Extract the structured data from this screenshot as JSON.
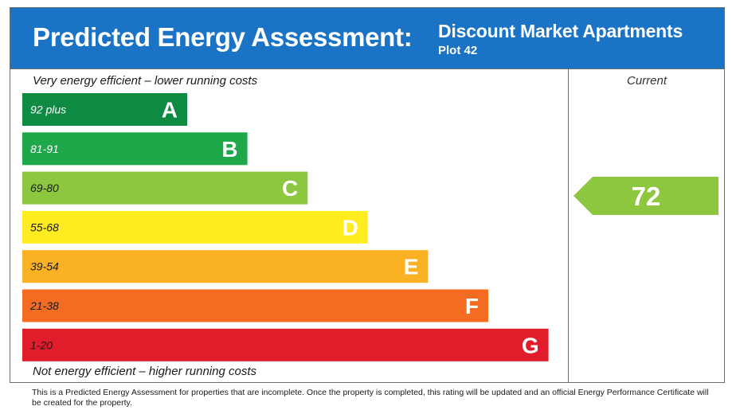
{
  "header": {
    "title": "Predicted Energy Assessment:",
    "property_name": "Discount Market Apartments",
    "plot": "Plot 42",
    "background_color": "#1a73c4"
  },
  "labels": {
    "top": "Very energy efficient – lower running costs",
    "bottom": "Not energy efficient – higher running costs",
    "current_column": "Current"
  },
  "chart_data": {
    "type": "bar",
    "categories": [
      "A",
      "B",
      "C",
      "D",
      "E",
      "F",
      "G"
    ],
    "series": [
      {
        "values": [
          92,
          81,
          69,
          55,
          39,
          21,
          1
        ]
      }
    ],
    "ranges": [
      "92 plus",
      "81-91",
      "69-80",
      "55-68",
      "39-54",
      "21-38",
      "1-20"
    ],
    "colors": [
      "#0e8a43",
      "#1fa84a",
      "#8dc63f",
      "#ffed21",
      "#fbb124",
      "#f36c21",
      "#e21d2b"
    ],
    "range_text_colors": [
      "#ffffff",
      "#ffffff",
      "#1a1a1a",
      "#1a1a1a",
      "#1a1a1a",
      "#1a1a1a",
      "#1a1a1a"
    ],
    "current": {
      "value": 72,
      "band": "C",
      "color": "#8dc63f"
    }
  },
  "footnote": "This is a Predicted Energy Assessment for properties that are incomplete. Once the property is completed, this rating will be updated and an official Energy Performance Certificate will be created for the property."
}
